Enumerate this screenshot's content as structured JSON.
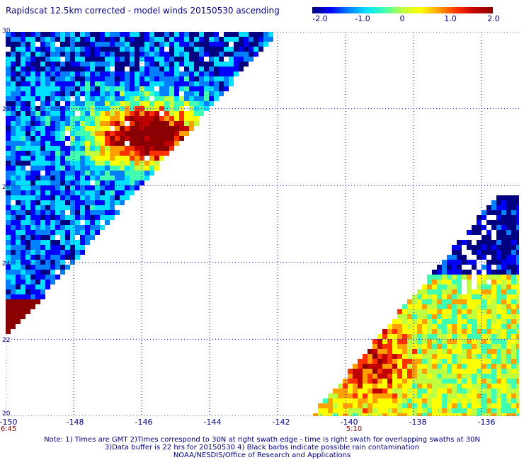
{
  "title": "Rapidscat 12.5km corrected - model winds 20150530 ascending",
  "colorbar": {
    "ticks": [
      "-2.0",
      "-1.0",
      "0",
      "1.0",
      "2.0"
    ],
    "colors": [
      "#000080",
      "#0000ff",
      "#0080ff",
      "#00e0ff",
      "#40ffb0",
      "#c0ff40",
      "#ffff00",
      "#ffa000",
      "#ff3000",
      "#c00000",
      "#8b0000"
    ]
  },
  "lat_labels": [
    "30",
    "28",
    "26",
    "24",
    "22",
    "20"
  ],
  "lon_labels": [
    "-150",
    "-148",
    "-146",
    "-144",
    "-142",
    "-140",
    "-138",
    "-136"
  ],
  "time_labels": [
    "6:45",
    "5:10"
  ],
  "notes": [
    "Note: 1) Times are GMT 2)Times correspond to 30N at right swath edge - time is right swath for overlapping swaths at 30N",
    "3)Data buffer is 22 hrs for 20150530 4) Black barbs indicate possible rain contamination",
    "NOAA/NESDIS/Office of Research and Applications"
  ],
  "map_data": {
    "type": "heatmap",
    "lon_range": [
      -150,
      -134.9
    ],
    "lat_range": [
      20,
      30
    ],
    "value_range": [
      -2.0,
      2.0
    ],
    "swaths": [
      {
        "time": "6:45",
        "coverage": "west swath, lon -150 to -142, lat 22 to 30",
        "high_anomaly_near": "lon -147 to -144, lat 26 to 28.5"
      },
      {
        "time": "5:10",
        "coverage": "east swath, lon -141 to -134.9, lat 20 to 25.5",
        "low_anomaly_near": "lon -136 to -135, lat 24 to 26"
      }
    ]
  }
}
